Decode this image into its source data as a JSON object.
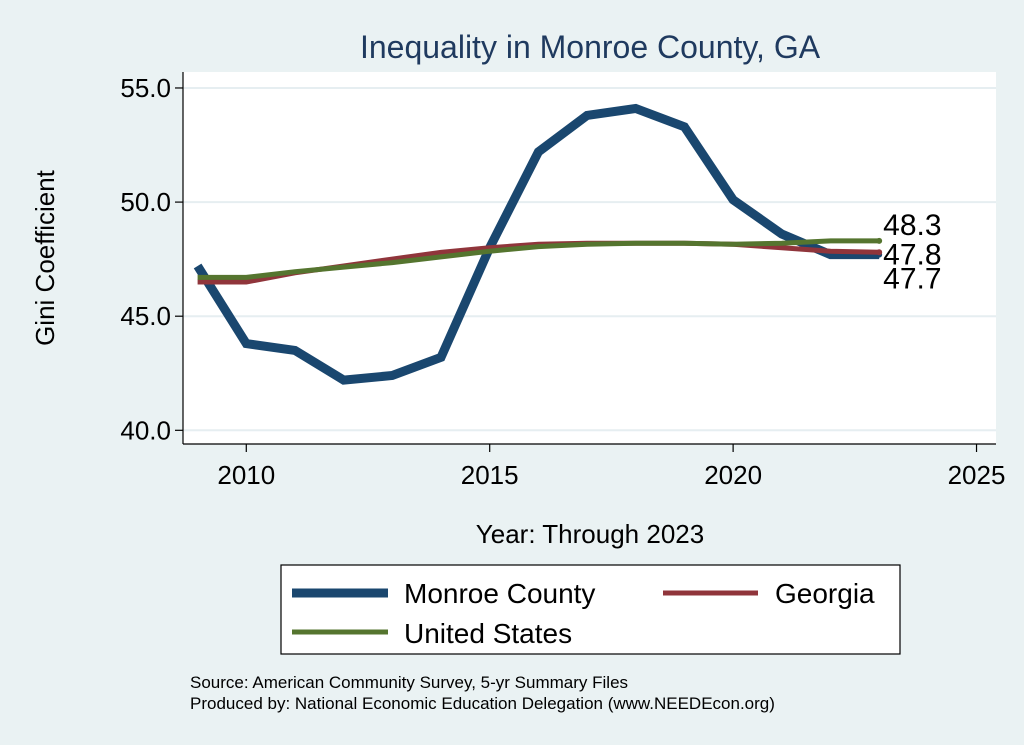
{
  "chart_data": {
    "type": "line",
    "title": "Inequality in Monroe County, GA",
    "xlabel": "Year: Through 2023",
    "ylabel": "Gini Coefficient",
    "xlim": [
      2008.7,
      2025.4
    ],
    "ylim": [
      39.4,
      55.7
    ],
    "x_ticks": [
      2010,
      2015,
      2020,
      2025
    ],
    "y_ticks": [
      {
        "value": 40,
        "label": "40.0"
      },
      {
        "value": 45,
        "label": "45.0"
      },
      {
        "value": 50,
        "label": "50.0"
      },
      {
        "value": 55,
        "label": "55.0"
      }
    ],
    "x": [
      2009,
      2010,
      2011,
      2012,
      2013,
      2014,
      2015,
      2016,
      2017,
      2018,
      2019,
      2020,
      2021,
      2022,
      2023
    ],
    "series": [
      {
        "name": "Monroe County",
        "color": "#1a476f",
        "values": [
          47.2,
          43.8,
          43.5,
          42.2,
          42.4,
          43.2,
          48.0,
          52.2,
          53.8,
          54.1,
          53.3,
          50.1,
          48.6,
          47.7,
          47.7
        ],
        "end_label": "47.7"
      },
      {
        "name": "Georgia",
        "color": "#90353b",
        "values": [
          46.5,
          46.5,
          46.9,
          47.2,
          47.5,
          47.8,
          48.0,
          48.15,
          48.2,
          48.2,
          48.2,
          48.15,
          48.0,
          47.85,
          47.8
        ],
        "end_label": "47.8"
      },
      {
        "name": "United States",
        "color": "#55752f",
        "values": [
          46.7,
          46.7,
          46.95,
          47.15,
          47.35,
          47.6,
          47.85,
          48.05,
          48.15,
          48.2,
          48.2,
          48.15,
          48.2,
          48.3,
          48.3
        ],
        "end_label": "48.3"
      }
    ],
    "legend_position": "bottom",
    "grid": true
  },
  "source_text": "Source: American Community Survey, 5-yr Summary Files",
  "producer_text": "Produced by: National Economic Education Delegation (www.NEEDEcon.org)"
}
